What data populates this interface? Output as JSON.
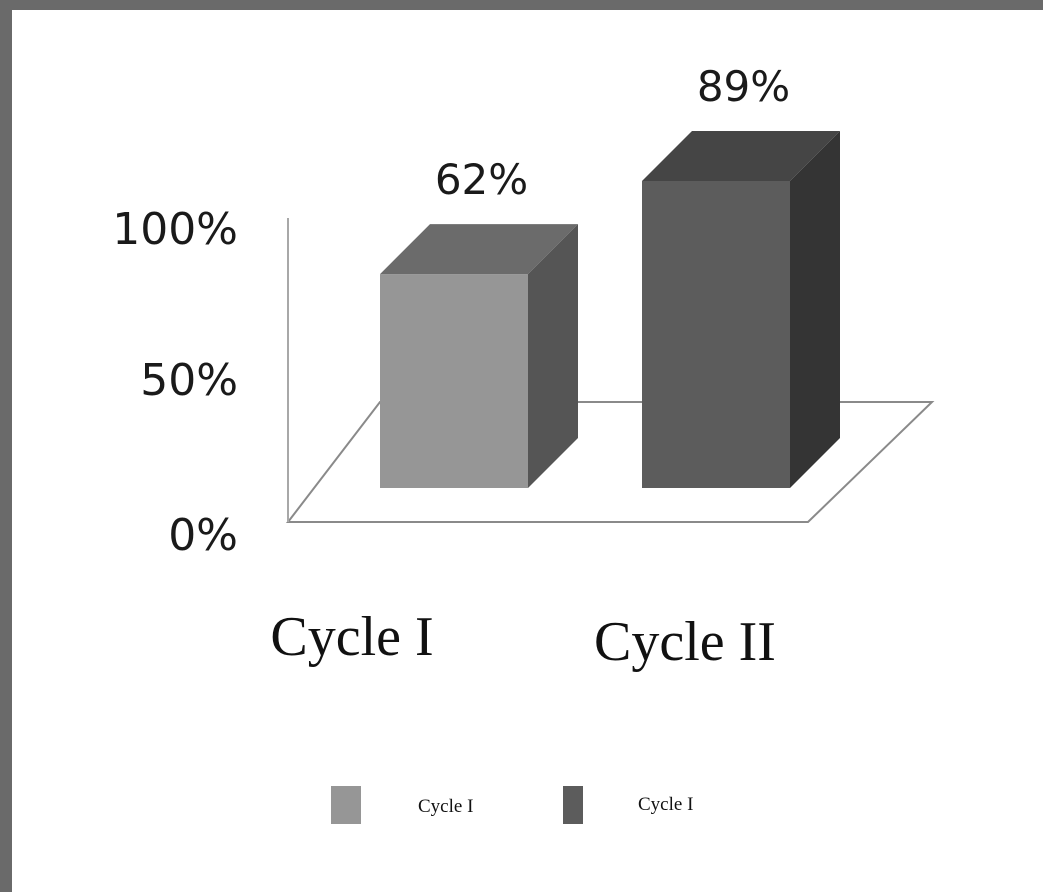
{
  "chart_data": {
    "type": "bar",
    "three_d": true,
    "categories": [
      "Cycle I",
      "Cycle II"
    ],
    "values": [
      62,
      89
    ],
    "value_labels": [
      "62%",
      "89%"
    ],
    "ylim": [
      0,
      100
    ],
    "yticks": [
      0,
      50,
      100
    ],
    "ytick_labels": [
      "0%",
      "50%",
      "100%"
    ],
    "grid": false,
    "legend": {
      "position": "bottom",
      "entries": [
        "Cycle I",
        "Cycle I"
      ]
    },
    "colors": {
      "bar_1_front": "#969696",
      "bar_1_side": "#555555",
      "bar_1_top": "#6b6b6b",
      "bar_2_front": "#5c5c5c",
      "bar_2_side": "#343434",
      "bar_2_top": "#454545"
    }
  }
}
